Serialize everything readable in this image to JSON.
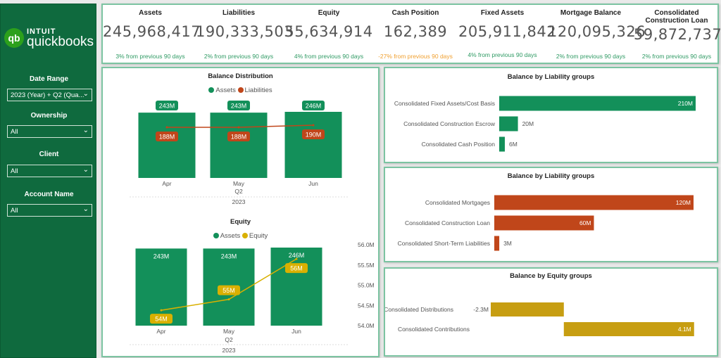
{
  "brand": {
    "line1": "INTUIT",
    "line2": "quickbooks",
    "mark": "qb"
  },
  "filters": [
    {
      "label": "Date Range",
      "value": "2023 (Year) + Q2 (Qua..."
    },
    {
      "label": "Ownership",
      "value": "All"
    },
    {
      "label": "Client",
      "value": "All"
    },
    {
      "label": "Account Name",
      "value": "All"
    }
  ],
  "kpis": [
    {
      "title": "Assets",
      "value": "245,968,417",
      "change": "3% from previous 90 days",
      "color": "#2e9a63"
    },
    {
      "title": "Liabilities",
      "value": "190,333,503",
      "change": "2% from previous 90 days",
      "color": "#2e9a63"
    },
    {
      "title": "Equity",
      "value": "55,634,914",
      "change": "4% from previous 90 days",
      "color": "#2e9a63"
    },
    {
      "title": "Cash Position",
      "value": "162,389",
      "change": "-27% from previous 90 days",
      "color": "#f0a030"
    },
    {
      "title": "Fixed Assets",
      "value": "205,911,842",
      "change": "4% from previous 90 days",
      "color": "#2e9a63"
    },
    {
      "title": "Mortgage Balance",
      "value": "120,095,326",
      "change": "2% from previous 90 days",
      "color": "#2e9a63"
    },
    {
      "title": "Consolidated Construction Loan",
      "value": "59,872,737",
      "change": "2% from previous 90 days",
      "color": "#2e9a63"
    }
  ],
  "chart_data": [
    {
      "type": "bar+line",
      "title": "Balance Distribution",
      "categories": [
        "Apr",
        "May",
        "Jun"
      ],
      "group_labels": [
        "Q2",
        "2023"
      ],
      "series": [
        {
          "name": "Assets",
          "values": [
            243,
            243,
            246
          ],
          "labels": [
            "243M",
            "243M",
            "246M"
          ],
          "color": "#13905a"
        },
        {
          "name": "Liabilities",
          "values": [
            188,
            188,
            190
          ],
          "labels": [
            "188M",
            "188M",
            "190M"
          ],
          "color": "#c0461a"
        }
      ]
    },
    {
      "type": "bar+line",
      "title": "Equity",
      "categories": [
        "Apr",
        "May",
        "Jun"
      ],
      "group_labels": [
        "Q2",
        "2023"
      ],
      "series": [
        {
          "name": "Assets",
          "values": [
            243,
            243,
            246
          ],
          "labels": [
            "243M",
            "243M",
            "246M"
          ],
          "color": "#13905a"
        },
        {
          "name": "Equity",
          "values": [
            54.38,
            54.65,
            55.65
          ],
          "labels": [
            "54M",
            "55M",
            "56M"
          ],
          "color": "#d9b000"
        }
      ],
      "y2_ticks": [
        "56.0M",
        "55.5M",
        "55.0M",
        "54.5M",
        "54.0M"
      ],
      "y2lim": [
        54.0,
        56.0
      ]
    },
    {
      "type": "bar",
      "orientation": "horizontal",
      "title": "Balance by Liability groups",
      "color": "#13905a",
      "categories": [
        "Consolidated Fixed Assets/Cost Basis",
        "Consolidated Construction Escrow",
        "Consolidated Cash Position"
      ],
      "values": [
        210,
        20,
        6
      ],
      "labels": [
        "210M",
        "20M",
        "6M"
      ]
    },
    {
      "type": "bar",
      "orientation": "horizontal",
      "title": "Balance by Liability groups",
      "color": "#c0461a",
      "categories": [
        "Consolidated Mortgages",
        "Consolidated Construction Loan",
        "Consolidated Short-Term Liabilities"
      ],
      "values": [
        120,
        60,
        3
      ],
      "labels": [
        "120M",
        "60M",
        "3M"
      ]
    },
    {
      "type": "bar",
      "orientation": "horizontal",
      "title": "Balance by Equity groups",
      "color": "#c79e12",
      "categories": [
        "Consolidated Distributions",
        "Consolidated Contributions"
      ],
      "values": [
        -2.3,
        4.1
      ],
      "labels": [
        "-2.3M",
        "4.1M"
      ]
    }
  ]
}
